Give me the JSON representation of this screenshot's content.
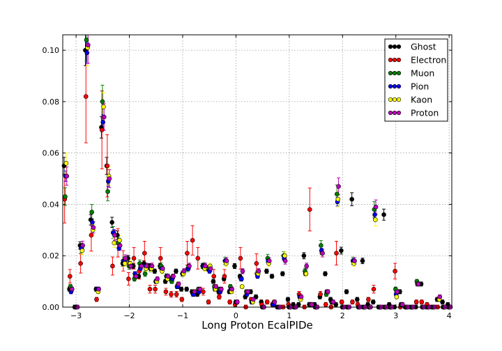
{
  "chart_data": {
    "type": "scatter",
    "xlabel": "Long Proton EcalPIDe",
    "ylabel": "",
    "title": "",
    "xlim": [
      -3.25,
      4.05
    ],
    "ylim": [
      0.0,
      0.106
    ],
    "grid": true,
    "legend_position": "top-right",
    "x_ticks": [
      {
        "value": -3,
        "label": "−3"
      },
      {
        "value": -2,
        "label": "−2"
      },
      {
        "value": -1,
        "label": "−1"
      },
      {
        "value": 0,
        "label": "0"
      },
      {
        "value": 1,
        "label": "1"
      },
      {
        "value": 2,
        "label": "2"
      },
      {
        "value": 3,
        "label": "3"
      },
      {
        "value": 4,
        "label": "4"
      }
    ],
    "y_ticks": [
      {
        "value": 0.0,
        "label": "0.00"
      },
      {
        "value": 0.02,
        "label": "0.02"
      },
      {
        "value": 0.04,
        "label": "0.04"
      },
      {
        "value": 0.06,
        "label": "0.06"
      },
      {
        "value": 0.08,
        "label": "0.08"
      },
      {
        "value": 0.1,
        "label": "0.10"
      }
    ],
    "bin_centers": [
      -3.2,
      -3.1,
      -3.0,
      -2.9,
      -2.8,
      -2.7,
      -2.6,
      -2.5,
      -2.4,
      -2.3,
      -2.2,
      -2.1,
      -2.0,
      -1.9,
      -1.8,
      -1.7,
      -1.6,
      -1.5,
      -1.4,
      -1.3,
      -1.2,
      -1.1,
      -1.0,
      -0.9,
      -0.8,
      -0.7,
      -0.6,
      -0.5,
      -0.4,
      -0.3,
      -0.2,
      -0.1,
      0.0,
      0.1,
      0.2,
      0.3,
      0.4,
      0.5,
      0.6,
      0.7,
      0.8,
      0.9,
      1.0,
      1.1,
      1.2,
      1.3,
      1.4,
      1.5,
      1.6,
      1.7,
      1.8,
      1.9,
      2.0,
      2.1,
      2.2,
      2.3,
      2.4,
      2.5,
      2.6,
      2.7,
      2.8,
      2.9,
      3.0,
      3.1,
      3.2,
      3.3,
      3.4,
      3.5,
      3.6,
      3.7,
      3.8,
      3.9,
      4.0
    ],
    "series": [
      {
        "name": "Ghost",
        "color": "#000000",
        "offset": -0.025,
        "values": [
          0.055,
          0.007,
          0.0,
          0.024,
          0.1,
          0.034,
          0.007,
          0.07,
          0.055,
          0.033,
          0.028,
          0.017,
          0.019,
          0.016,
          0.012,
          0.017,
          0.016,
          0.014,
          0.016,
          0.01,
          0.011,
          0.014,
          0.007,
          0.007,
          0.006,
          0.005,
          0.016,
          0.015,
          0.01,
          0.006,
          0.011,
          0.006,
          0.016,
          0.012,
          0.004,
          0.006,
          0.004,
          0.002,
          0.014,
          0.012,
          0.0,
          0.013,
          0.003,
          0.001,
          0.001,
          0.02,
          0.001,
          0.001,
          0.004,
          0.013,
          0.003,
          0.001,
          0.022,
          0.006,
          0.042,
          0.003,
          0.018,
          0.001,
          0.002,
          0.0,
          0.036,
          0.001,
          0.0,
          0.006,
          0.0,
          0.0,
          0.0,
          0.009,
          0.0,
          0.0,
          0.003,
          0.002,
          0.001
        ]
      },
      {
        "name": "Electron",
        "color": "#ff0000",
        "offset": -0.015,
        "values": [
          0.042,
          0.012,
          0.0,
          0.017,
          0.082,
          0.028,
          0.003,
          0.069,
          0.055,
          0.016,
          0.025,
          0.018,
          0.011,
          0.019,
          0.014,
          0.021,
          0.007,
          0.007,
          0.019,
          0.006,
          0.005,
          0.005,
          0.003,
          0.021,
          0.026,
          0.019,
          0.006,
          0.002,
          0.012,
          0.004,
          0.012,
          0.002,
          0.001,
          0.019,
          0.0,
          0.003,
          0.017,
          0.001,
          0.002,
          0.001,
          0.0,
          0.0,
          0.001,
          0.0,
          0.005,
          0.0,
          0.038,
          0.0,
          0.005,
          0.001,
          0.0,
          0.021,
          0.002,
          0.0,
          0.002,
          0.001,
          0.0,
          0.003,
          0.007,
          0.0,
          0.0,
          0.0,
          0.014,
          0.0,
          0.0,
          0.0,
          0.002,
          0.002,
          0.001,
          0.0,
          0.0,
          0.0,
          0.0
        ]
      },
      {
        "name": "Muon",
        "color": "#008000",
        "offset": -0.005,
        "values": [
          0.043,
          0.008,
          0.0,
          0.023,
          0.104,
          0.037,
          0.007,
          0.08,
          0.045,
          0.029,
          0.025,
          0.018,
          0.016,
          0.011,
          0.017,
          0.013,
          0.015,
          0.01,
          0.016,
          0.012,
          0.01,
          0.008,
          0.013,
          0.015,
          0.005,
          0.007,
          0.016,
          0.015,
          0.008,
          0.007,
          0.018,
          0.008,
          0.002,
          0.011,
          0.006,
          0.002,
          0.013,
          0.0,
          0.019,
          0.001,
          0.0,
          0.02,
          0.0,
          0.0,
          0.004,
          0.014,
          0.001,
          0.0,
          0.024,
          0.005,
          0.002,
          0.044,
          0.0,
          0.0,
          0.018,
          0.0,
          0.0,
          0.0,
          0.038,
          0.0,
          0.0,
          0.0,
          0.007,
          0.001,
          0.0,
          0.0,
          0.01,
          0.0,
          0.0,
          0.0,
          0.003,
          0.0,
          0.0
        ]
      },
      {
        "name": "Pion",
        "color": "#0000ff",
        "offset": 0.005,
        "values": [
          0.051,
          0.006,
          0.0,
          0.023,
          0.099,
          0.033,
          0.007,
          0.072,
          0.049,
          0.029,
          0.023,
          0.018,
          0.017,
          0.013,
          0.015,
          0.016,
          0.015,
          0.01,
          0.015,
          0.012,
          0.011,
          0.008,
          0.013,
          0.015,
          0.005,
          0.006,
          0.016,
          0.014,
          0.007,
          0.006,
          0.018,
          0.007,
          0.002,
          0.011,
          0.005,
          0.002,
          0.012,
          0.0,
          0.018,
          0.001,
          0.0,
          0.019,
          0.0,
          0.0,
          0.004,
          0.013,
          0.001,
          0.0,
          0.022,
          0.006,
          0.002,
          0.041,
          0.0,
          0.0,
          0.018,
          0.0,
          0.0,
          0.0,
          0.036,
          0.0,
          0.0,
          0.0,
          0.005,
          0.001,
          0.0,
          0.0,
          0.009,
          0.0,
          0.0,
          0.0,
          0.003,
          0.0,
          0.0
        ]
      },
      {
        "name": "Kaon",
        "color": "#ffff00",
        "offset": 0.015,
        "values": [
          0.056,
          0.007,
          0.0,
          0.022,
          0.101,
          0.03,
          0.006,
          0.078,
          0.051,
          0.025,
          0.026,
          0.017,
          0.017,
          0.012,
          0.016,
          0.015,
          0.015,
          0.01,
          0.014,
          0.011,
          0.012,
          0.009,
          0.013,
          0.016,
          0.006,
          0.007,
          0.015,
          0.016,
          0.007,
          0.007,
          0.017,
          0.006,
          0.002,
          0.008,
          0.006,
          0.002,
          0.013,
          0.0,
          0.017,
          0.002,
          0.0,
          0.02,
          0.0,
          0.0,
          0.003,
          0.013,
          0.001,
          0.0,
          0.021,
          0.006,
          0.002,
          0.042,
          0.0,
          0.0,
          0.017,
          0.0,
          0.0,
          0.0,
          0.034,
          0.0,
          0.0,
          0.0,
          0.004,
          0.001,
          0.0,
          0.0,
          0.009,
          0.0,
          0.0,
          0.0,
          0.003,
          0.0,
          0.0
        ]
      },
      {
        "name": "Proton",
        "color": "#bf00bf",
        "offset": 0.025,
        "values": [
          0.051,
          0.007,
          0.0,
          0.024,
          0.102,
          0.031,
          0.007,
          0.074,
          0.05,
          0.028,
          0.024,
          0.019,
          0.016,
          0.012,
          0.016,
          0.016,
          0.016,
          0.011,
          0.015,
          0.012,
          0.012,
          0.009,
          0.014,
          0.016,
          0.006,
          0.007,
          0.016,
          0.015,
          0.008,
          0.007,
          0.018,
          0.007,
          0.002,
          0.014,
          0.006,
          0.003,
          0.014,
          0.0,
          0.018,
          0.002,
          0.0,
          0.018,
          0.0,
          0.0,
          0.004,
          0.016,
          0.001,
          0.0,
          0.021,
          0.006,
          0.002,
          0.047,
          0.0,
          0.0,
          0.018,
          0.0,
          0.0,
          0.0,
          0.039,
          0.0,
          0.0,
          0.0,
          0.006,
          0.001,
          0.0,
          0.0,
          0.009,
          0.0,
          0.0,
          0.0,
          0.004,
          0.0,
          0.0
        ]
      }
    ],
    "error_fraction": {
      "Ghost": 0.06,
      "Electron": 0.22,
      "Muon": 0.08,
      "Pion": 0.04,
      "Kaon": 0.07,
      "Proton": 0.07
    }
  }
}
